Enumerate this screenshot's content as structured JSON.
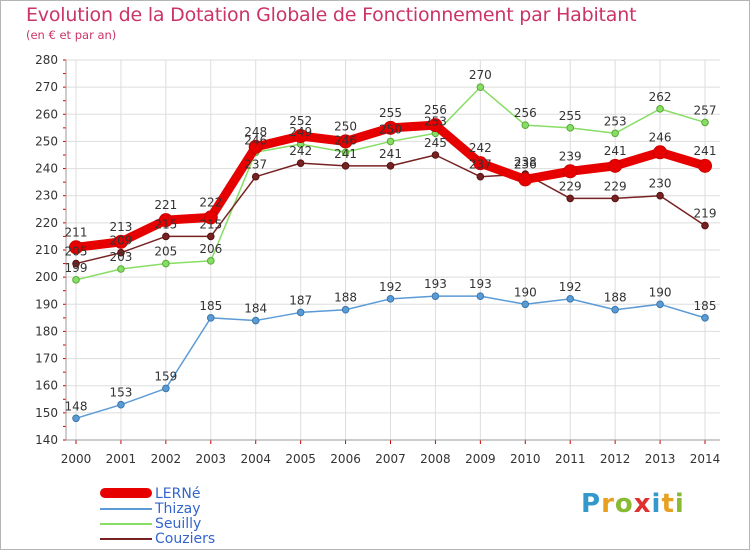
{
  "title": "Evolution de la Dotation Globale de Fonctionnement par Habitant",
  "subtitle": "(en € et par an)",
  "logo": {
    "letters": [
      "P",
      "r",
      "o",
      "x",
      "i",
      "t",
      "i"
    ],
    "colors": [
      "#3399cc",
      "#e8a020",
      "#88bb33",
      "#e03030",
      "#3399cc",
      "#e8a020",
      "#88bb33"
    ]
  },
  "chart_data": {
    "type": "line",
    "x": [
      "2000",
      "2001",
      "2002",
      "2003",
      "2004",
      "2005",
      "2006",
      "2007",
      "2008",
      "2009",
      "2010",
      "2011",
      "2012",
      "2013",
      "2014"
    ],
    "ylim": [
      140,
      280
    ],
    "yticks": [
      140,
      150,
      160,
      170,
      180,
      190,
      200,
      210,
      220,
      230,
      240,
      250,
      260,
      270,
      280
    ],
    "grid": true,
    "legend_position": "bottom-left",
    "series": [
      {
        "name": "LERNé",
        "color": "#e60000",
        "values": [
          211,
          213,
          221,
          222,
          248,
          252,
          250,
          255,
          256,
          242,
          236,
          239,
          241,
          246,
          241
        ]
      },
      {
        "name": "Thizay",
        "color": "#5b9bd5",
        "values": [
          148,
          153,
          159,
          185,
          184,
          187,
          188,
          192,
          193,
          193,
          190,
          192,
          188,
          190,
          185
        ]
      },
      {
        "name": "Seuilly",
        "color": "#88dd66",
        "values": [
          199,
          203,
          205,
          206,
          246,
          249,
          246,
          250,
          253,
          270,
          256,
          255,
          253,
          262,
          257
        ]
      },
      {
        "name": "Couziers",
        "color": "#772222",
        "values": [
          205,
          209,
          215,
          215,
          237,
          242,
          241,
          241,
          245,
          237,
          238,
          229,
          229,
          230,
          219
        ]
      }
    ]
  }
}
